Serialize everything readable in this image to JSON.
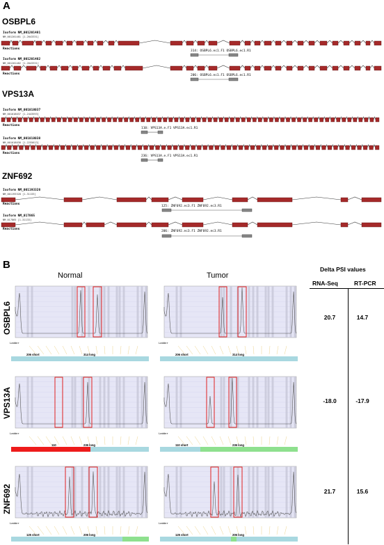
{
  "panel_a": {
    "letter": "A",
    "genes": [
      {
        "name": "OSBPL6",
        "isoforms": [
          {
            "label": "Isoform NM_001201481",
            "sub": "NM_001201481 [1-2043331]",
            "primer": "314: OSBPL6.ec1.F1  OSBPL6.ec1.R1"
          },
          {
            "label": "Isoform NM_001201482",
            "sub": "NM_001201482 [1-2043331]",
            "primer": "206: OSBPL6.ec1.F1  OSBPL6.ec1.R1"
          }
        ]
      },
      {
        "name": "VPS13A",
        "isoforms": [
          {
            "label": "Isoform NM_001018037",
            "sub": "NM_001018037 [1-2443593]",
            "primer": "110: VPS13A.e.F1  VPS13A.ec1.R1"
          },
          {
            "label": "Isoform NM_001018038",
            "sub": "NM_001018038 [1-2255613]",
            "primer": "236: VPS13A.e.F1  VPS13A.ec1.R1"
          }
        ]
      },
      {
        "name": "ZNF692",
        "isoforms": [
          {
            "label": "Isoform NM_001193328",
            "sub": "NM_001193328 [1-31133]",
            "primer": "125: ZNF692.ec3.F1  ZNF692.ec3.R1"
          },
          {
            "label": "Isoform NM_017865",
            "sub": "NM_017865 [1-31133]",
            "primer": "206: ZNF692.ec3.F1  ZNF692.ec3.R1"
          }
        ]
      }
    ],
    "reactions_label": "Reactions"
  },
  "panel_b": {
    "letter": "B",
    "col_normal": "Normal",
    "col_tumor": "Tumor",
    "delta_title": "Delta PSI values",
    "delta_col_rnaseq": "RNA-Seq",
    "delta_col_rtpcr": "RT-PCR",
    "ladder_label": "Ladder",
    "rows": [
      {
        "gene": "OSBPL6",
        "rnaseq": "20.7",
        "rtpcr": "14.7",
        "normal_short": "206 short",
        "normal_long": "314 long",
        "tumor_short": "206 short",
        "tumor_long": "314 long"
      },
      {
        "gene": "VPS13A",
        "rnaseq": "-18.0",
        "rtpcr": "-17.9",
        "normal_short": "110",
        "normal_long": "236 long",
        "tumor_short": "110 short",
        "tumor_long": "236 long"
      },
      {
        "gene": "ZNF692",
        "rnaseq": "21.7",
        "rtpcr": "15.6",
        "normal_short": "125 short",
        "normal_long": "206 long",
        "tumor_short": "125 short",
        "tumor_long": "206 long"
      }
    ]
  },
  "colors": {
    "exon": "#a52a2a",
    "exon_border": "#5a1010",
    "plot_bg": "#e6e6f6",
    "highlight_box": "#e02020",
    "bar_blue": "#a8d8e0",
    "bar_red": "#ee1b1b",
    "bar_green": "#8ee08e"
  }
}
